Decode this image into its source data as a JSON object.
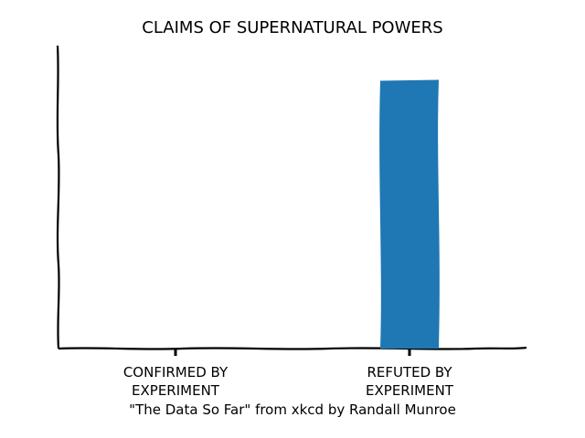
{
  "chart_data": {
    "type": "bar",
    "title": "CLAIMS OF SUPERNATURAL POWERS",
    "categories": [
      "CONFIRMED BY\nEXPERIMENT",
      "REFUTED BY\nEXPERIMENT"
    ],
    "values": [
      0,
      100
    ],
    "color": "#1f77b4",
    "ylim": [
      0,
      110
    ],
    "caption": "\"The Data So Far\" from xkcd by Randall Munroe"
  }
}
